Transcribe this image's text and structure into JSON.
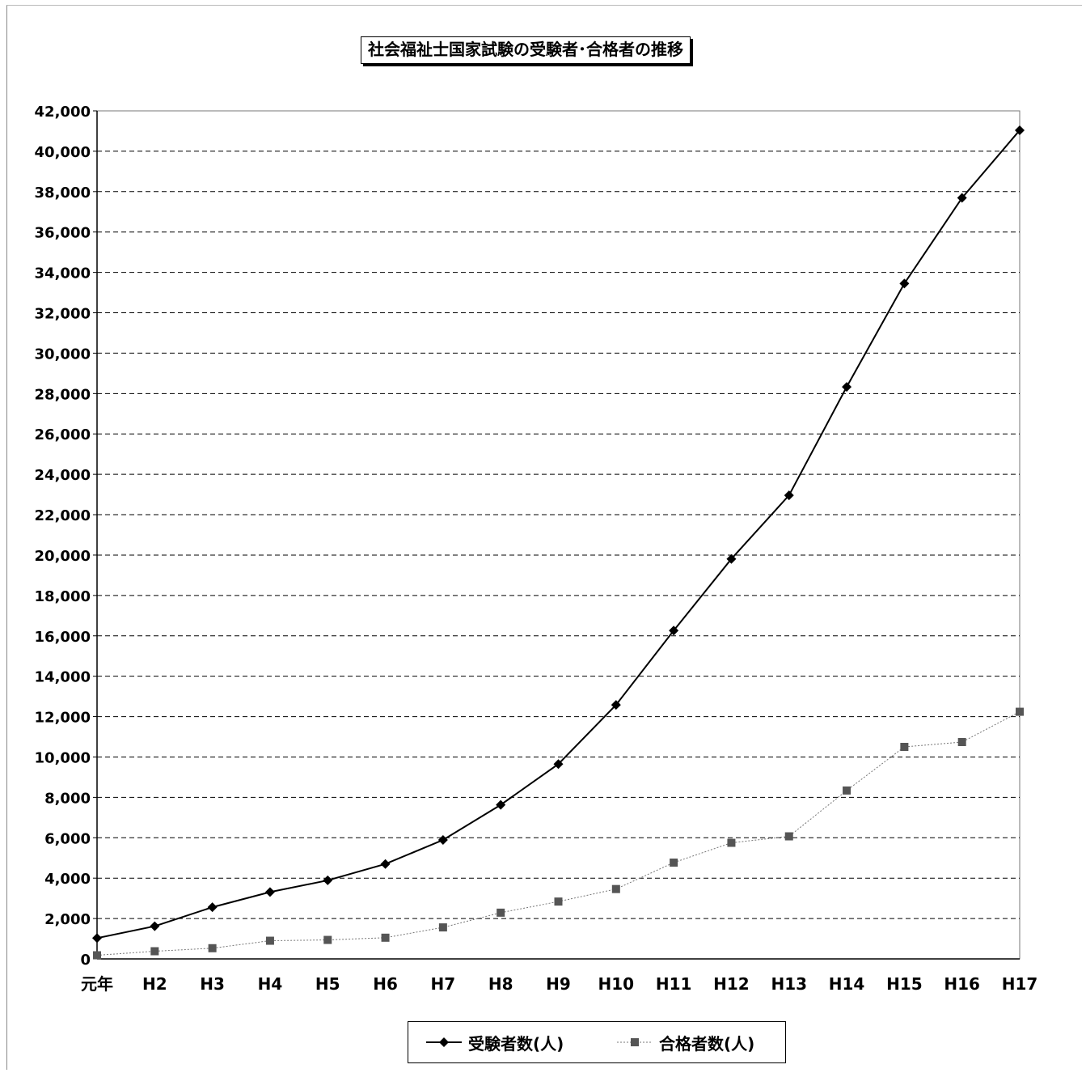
{
  "chart_data": {
    "type": "line",
    "title": "社会福祉士国家試験の受験者･合格者の推移",
    "categories": [
      "元年",
      "H2",
      "H3",
      "H4",
      "H5",
      "H6",
      "H7",
      "H8",
      "H9",
      "H10",
      "H11",
      "H12",
      "H13",
      "H14",
      "H15",
      "H16",
      "H17"
    ],
    "ylim": [
      0,
      42000
    ],
    "yticks": [
      "0",
      "2,000",
      "4,000",
      "6,000",
      "8,000",
      "10,000",
      "12,000",
      "14,000",
      "16,000",
      "18,000",
      "20,000",
      "22,000",
      "24,000",
      "26,000",
      "28,000",
      "30,000",
      "32,000",
      "34,000",
      "36,000",
      "38,000",
      "40,000",
      "42,000"
    ],
    "grid": true,
    "legend_position": "bottom",
    "series": [
      {
        "name": "受験者数(人)",
        "marker": "diamond",
        "color": "#000000",
        "values": [
          1030,
          1620,
          2560,
          3310,
          3890,
          4700,
          5890,
          7630,
          9650,
          12580,
          16260,
          19810,
          22960,
          28330,
          33450,
          37690,
          41040
        ]
      },
      {
        "name": "合格者数(人)",
        "marker": "square",
        "color": "#555555",
        "values": [
          180,
          380,
          530,
          900,
          940,
          1050,
          1560,
          2290,
          2840,
          3460,
          4770,
          5750,
          6070,
          8340,
          10500,
          10740,
          12240
        ]
      }
    ]
  }
}
